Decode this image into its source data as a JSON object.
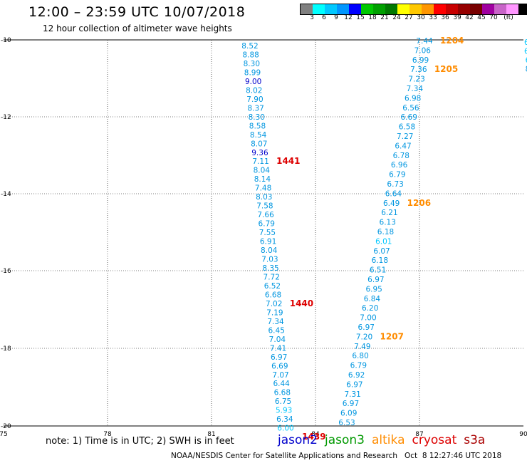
{
  "header": {
    "title": "12:00 – 23:59 UTC 10/07/2018",
    "subtitle": "12 hour collection of altimeter wave heights"
  },
  "colorbar": {
    "colors": [
      "#808080",
      "#00ffff",
      "#00c8ff",
      "#0096ff",
      "#0000ff",
      "#00c800",
      "#00a000",
      "#007800",
      "#ffff00",
      "#ffc800",
      "#ff9600",
      "#ff0000",
      "#c80000",
      "#960000",
      "#780000",
      "#a000a0",
      "#c864c8",
      "#ff96ff",
      "#000000"
    ],
    "labels": [
      "3",
      "6",
      "9",
      "12",
      "15",
      "18",
      "21",
      "24",
      "27",
      "30",
      "33",
      "36",
      "39",
      "42",
      "45",
      "70",
      "(ft)"
    ]
  },
  "map": {
    "lon_ticks": [
      "75",
      "78",
      "81",
      "84",
      "87",
      "90"
    ],
    "lat_ticks": [
      "-10",
      "-12",
      "-14",
      "-16",
      "-18",
      "-20"
    ],
    "grid": true
  },
  "tracks": [
    {
      "name": "track-a",
      "heights": [
        "8.52",
        "8.88",
        "8.30",
        "8.99",
        "9.00",
        "8.02",
        "7.90",
        "8.37",
        "8.30",
        "8.58",
        "8.54",
        "8.07",
        "9.36",
        "7.11",
        "8.04",
        "8.14",
        "7.48",
        "8.03",
        "7.58",
        "7.66",
        "6.79",
        "7.55",
        "6.91",
        "8.04",
        "7.03",
        "8.35",
        "7.72",
        "6.52",
        "6.68",
        "7.02",
        "7.19",
        "7.34",
        "6.45",
        "7.04",
        "7.41",
        "6.97",
        "6.69",
        "7.07",
        "6.44",
        "6.68",
        "6.75",
        "5.93",
        "6.34",
        "6.00"
      ],
      "times": [
        {
          "label": "1441",
          "color": "#dd0000",
          "row": 13
        },
        {
          "label": "1440",
          "color": "#dd0000",
          "row": 29
        },
        {
          "label": "1439",
          "color": "#dd0000",
          "row": 44
        }
      ]
    },
    {
      "name": "track-b",
      "heights": [
        "7.44",
        "7.06",
        "6.99",
        "7.36",
        "7.23",
        "7.34",
        "6.98",
        "6.56",
        "6.69",
        "6.58",
        "7.27",
        "6.47",
        "6.78",
        "6.96",
        "6.79",
        "6.73",
        "6.64",
        "6.49",
        "6.21",
        "6.13",
        "6.18",
        "6.01",
        "6.07",
        "6.18",
        "6.51",
        "6.97",
        "6.95",
        "6.84",
        "6.20",
        "7.00",
        "6.97",
        "7.20",
        "7.49",
        "6.80",
        "6.79",
        "6.92",
        "6.97",
        "7.31",
        "6.97",
        "6.09",
        "6.53"
      ],
      "times": [
        {
          "label": "1204",
          "color": "#ff8c00",
          "row": 0
        },
        {
          "label": "1205",
          "color": "#ff8c00",
          "row": 3
        },
        {
          "label": "1206",
          "color": "#ff8c00",
          "row": 17
        },
        {
          "label": "1207",
          "color": "#ff8c00",
          "row": 31
        }
      ]
    },
    {
      "name": "track-c",
      "heights": [
        "6.",
        "6.",
        "6",
        "8"
      ],
      "times": []
    }
  ],
  "footer": {
    "note": "note: 1) Time is in UTC; 2) SWH is in feet",
    "satellites": [
      {
        "label": "jason2",
        "color": "#0000cc"
      },
      {
        "label": "jason3",
        "color": "#009900"
      },
      {
        "label": "altika",
        "color": "#ff8c00"
      },
      {
        "label": "cryosat",
        "color": "#dd0000"
      },
      {
        "label": "s3a",
        "color": "#aa0000"
      }
    ],
    "credit": "NOAA/NESDIS Center for Satellite Applications and Research   Oct  8 12:27:46 UTC 2018"
  }
}
